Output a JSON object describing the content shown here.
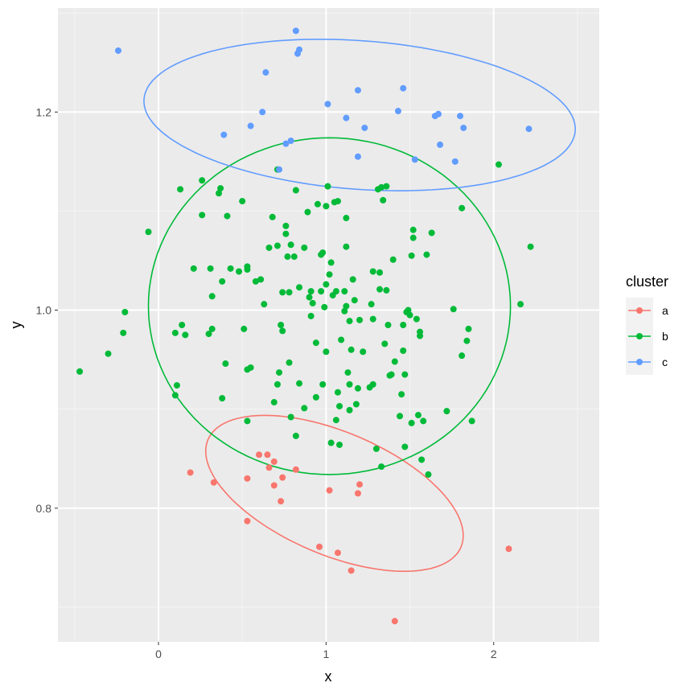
{
  "chart_data": {
    "type": "scatter",
    "xlabel": "x",
    "ylabel": "y",
    "xlim": [
      -0.6,
      2.63
    ],
    "ylim": [
      0.665,
      1.305
    ],
    "x_ticks": [
      0,
      1,
      2
    ],
    "y_ticks": [
      0.8,
      1.0,
      1.2
    ],
    "x_tick_labels": [
      "0",
      "1",
      "2"
    ],
    "y_tick_labels": [
      "0.8",
      "1.0",
      "1.2"
    ],
    "grid": true,
    "legend": {
      "title": "cluster",
      "position": "right"
    },
    "series": [
      {
        "name": "a",
        "color": "#F8766D",
        "points": [
          [
            0.19,
            0.836
          ],
          [
            0.33,
            0.826
          ],
          [
            0.53,
            0.83
          ],
          [
            0.53,
            0.787
          ],
          [
            0.6,
            0.854
          ],
          [
            0.65,
            0.854
          ],
          [
            0.66,
            0.841
          ],
          [
            0.69,
            0.847
          ],
          [
            0.69,
            0.823
          ],
          [
            0.73,
            0.807
          ],
          [
            0.74,
            0.831
          ],
          [
            0.82,
            0.839
          ],
          [
            0.96,
            0.761
          ],
          [
            1.02,
            0.818
          ],
          [
            1.07,
            0.755
          ],
          [
            1.15,
            0.737
          ],
          [
            1.19,
            0.815
          ],
          [
            1.2,
            0.824
          ],
          [
            1.41,
            0.686
          ],
          [
            2.09,
            0.759
          ]
        ],
        "ellipse": {
          "cx": 1.05,
          "cy": 0.815,
          "rx": 0.82,
          "ry": 0.062,
          "angle": 23
        }
      },
      {
        "name": "b",
        "color": "#00BA38",
        "points": [
          [
            -0.47,
            0.938
          ],
          [
            -0.3,
            0.956
          ],
          [
            -0.2,
            0.998
          ],
          [
            -0.21,
            0.977
          ],
          [
            -0.06,
            1.079
          ],
          [
            0.1,
            0.977
          ],
          [
            0.11,
            0.924
          ],
          [
            0.1,
            0.914
          ],
          [
            0.13,
            1.122
          ],
          [
            0.14,
            0.985
          ],
          [
            0.16,
            0.975
          ],
          [
            0.21,
            1.042
          ],
          [
            0.26,
            1.131
          ],
          [
            0.26,
            1.096
          ],
          [
            0.3,
            0.976
          ],
          [
            0.31,
            1.042
          ],
          [
            0.32,
            0.981
          ],
          [
            0.32,
            1.014
          ],
          [
            0.36,
            1.118
          ],
          [
            0.37,
            1.123
          ],
          [
            0.38,
            1.029
          ],
          [
            0.38,
            0.911
          ],
          [
            0.4,
            0.946
          ],
          [
            0.41,
            1.095
          ],
          [
            0.43,
            1.042
          ],
          [
            0.48,
            1.039
          ],
          [
            0.5,
            1.11
          ],
          [
            0.51,
            0.981
          ],
          [
            0.53,
            1.044
          ],
          [
            0.53,
            1.041
          ],
          [
            0.55,
            0.942
          ],
          [
            0.53,
            0.94
          ],
          [
            0.53,
            0.888
          ],
          [
            0.58,
            1.029
          ],
          [
            0.61,
            1.031
          ],
          [
            0.63,
            1.006
          ],
          [
            0.66,
            1.063
          ],
          [
            0.68,
            1.094
          ],
          [
            0.69,
            0.907
          ],
          [
            0.71,
            0.925
          ],
          [
            0.71,
            1.065
          ],
          [
            0.71,
            1.142
          ],
          [
            0.72,
            0.937
          ],
          [
            0.73,
            0.985
          ],
          [
            0.74,
            1.018
          ],
          [
            0.74,
            0.979
          ],
          [
            0.76,
            1.085
          ],
          [
            0.76,
            1.077
          ],
          [
            0.77,
            1.054
          ],
          [
            0.78,
            0.947
          ],
          [
            0.78,
            1.018
          ],
          [
            0.79,
            0.892
          ],
          [
            0.79,
            1.066
          ],
          [
            0.81,
            1.054
          ],
          [
            0.82,
            0.873
          ],
          [
            0.82,
            1.121
          ],
          [
            0.84,
            1.023
          ],
          [
            0.84,
            0.926
          ],
          [
            0.87,
            1.063
          ],
          [
            0.87,
            0.901
          ],
          [
            0.89,
            1.099
          ],
          [
            0.9,
            1.013
          ],
          [
            0.91,
            0.994
          ],
          [
            0.91,
            1.019
          ],
          [
            0.92,
            1.007
          ],
          [
            0.94,
            0.967
          ],
          [
            0.94,
            0.912
          ],
          [
            0.95,
            1.107
          ],
          [
            0.97,
            1.019
          ],
          [
            0.97,
            1.056
          ],
          [
            0.98,
            1.058
          ],
          [
            0.98,
            0.925
          ],
          [
            0.99,
            1.003
          ],
          [
            1,
            1.105
          ],
          [
            1,
            0.958
          ],
          [
            1,
            1.026
          ],
          [
            1.01,
            1.125
          ],
          [
            1.02,
            1.036
          ],
          [
            1.03,
            1.048
          ],
          [
            1.03,
            0.866
          ],
          [
            1.04,
            1.015
          ],
          [
            1.05,
            1.109
          ],
          [
            1.06,
            1.019
          ],
          [
            1.06,
            0.889
          ],
          [
            1.07,
            1.11
          ],
          [
            1.07,
            0.917
          ],
          [
            1.08,
            0.864
          ],
          [
            1.08,
            0.903
          ],
          [
            1.09,
            0.97
          ],
          [
            1.11,
            1.019
          ],
          [
            1.11,
            0.999
          ],
          [
            1.12,
            1.093
          ],
          [
            1.12,
            1.004
          ],
          [
            1.12,
            1.064
          ],
          [
            1.13,
            0.937
          ],
          [
            1.14,
            0.899
          ],
          [
            1.14,
            0.925
          ],
          [
            1.14,
            0.989
          ],
          [
            1.15,
            0.96
          ],
          [
            1.16,
            1.031
          ],
          [
            1.17,
            1.01
          ],
          [
            1.18,
            0.905
          ],
          [
            1.19,
            0.921
          ],
          [
            1.2,
            0.99
          ],
          [
            1.22,
            0.958
          ],
          [
            1.26,
            0.922
          ],
          [
            1.27,
            1.006
          ],
          [
            1.28,
            0.991
          ],
          [
            1.28,
            1.039
          ],
          [
            1.28,
            0.925
          ],
          [
            1.3,
            0.86
          ],
          [
            1.31,
            1.122
          ],
          [
            1.32,
            1.038
          ],
          [
            1.32,
            1.021
          ],
          [
            1.33,
            0.842
          ],
          [
            1.33,
            1.124
          ],
          [
            1.34,
            1.111
          ],
          [
            1.35,
            0.966
          ],
          [
            1.36,
            1.02
          ],
          [
            1.36,
            1.125
          ],
          [
            1.37,
            0.985
          ],
          [
            1.38,
            0.934
          ],
          [
            1.39,
            0.935
          ],
          [
            1.4,
            1.051
          ],
          [
            1.41,
            0.948
          ],
          [
            1.44,
            0.893
          ],
          [
            1.45,
            0.915
          ],
          [
            1.46,
            0.959
          ],
          [
            1.46,
            0.985
          ],
          [
            1.47,
            0.862
          ],
          [
            1.47,
            0.935
          ],
          [
            1.48,
            0.998
          ],
          [
            1.49,
            1
          ],
          [
            1.5,
            0.995
          ],
          [
            1.51,
            1.055
          ],
          [
            1.51,
            0.886
          ],
          [
            1.52,
            1.081
          ],
          [
            1.52,
            1.073
          ],
          [
            1.54,
            0.991
          ],
          [
            1.55,
            0.894
          ],
          [
            1.56,
            0.974
          ],
          [
            1.56,
            0.978
          ],
          [
            1.57,
            0.849
          ],
          [
            1.58,
            0.888
          ],
          [
            1.6,
            1.056
          ],
          [
            1.61,
            0.834
          ],
          [
            1.63,
            1.078
          ],
          [
            1.72,
            0.898
          ],
          [
            1.76,
            1.001
          ],
          [
            1.81,
            1.103
          ],
          [
            1.81,
            0.954
          ],
          [
            1.84,
            0.969
          ],
          [
            1.85,
            0.981
          ],
          [
            1.87,
            0.888
          ],
          [
            2.03,
            1.147
          ],
          [
            2.16,
            1.006
          ],
          [
            2.22,
            1.064
          ]
        ],
        "ellipse": {
          "cx": 1.02,
          "cy": 1.004,
          "rx": 1.08,
          "ry": 0.17,
          "angle": 0
        }
      },
      {
        "name": "c",
        "color": "#619CFF",
        "points": [
          [
            -0.24,
            1.262
          ],
          [
            0.39,
            1.177
          ],
          [
            0.55,
            1.186
          ],
          [
            0.62,
            1.2
          ],
          [
            0.64,
            1.24
          ],
          [
            0.72,
            1.142
          ],
          [
            0.76,
            1.168
          ],
          [
            0.79,
            1.171
          ],
          [
            0.82,
            1.282
          ],
          [
            0.83,
            1.259
          ],
          [
            0.84,
            1.263
          ],
          [
            1.01,
            1.208
          ],
          [
            1.12,
            1.194
          ],
          [
            1.19,
            1.155
          ],
          [
            1.19,
            1.222
          ],
          [
            1.23,
            1.184
          ],
          [
            1.43,
            1.201
          ],
          [
            1.46,
            1.224
          ],
          [
            1.53,
            1.152
          ],
          [
            1.65,
            1.196
          ],
          [
            1.67,
            1.198
          ],
          [
            1.68,
            1.167
          ],
          [
            1.77,
            1.15
          ],
          [
            1.8,
            1.196
          ],
          [
            1.82,
            1.184
          ],
          [
            2.21,
            1.183
          ]
        ],
        "ellipse": {
          "cx": 1.2,
          "cy": 1.197,
          "rx": 1.29,
          "ry": 0.075,
          "angle": 4.2
        }
      }
    ]
  }
}
